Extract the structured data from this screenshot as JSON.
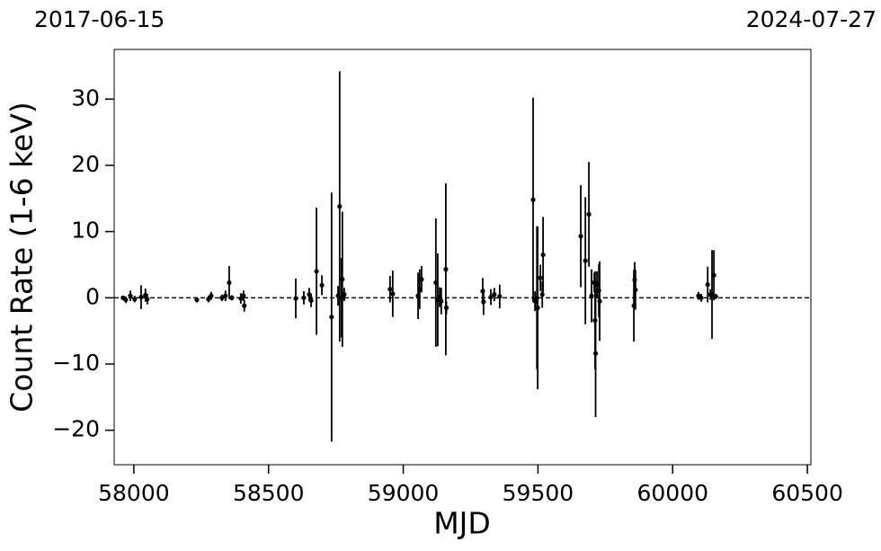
{
  "chart_data": {
    "type": "errorbar",
    "annotations": [
      "2017-06-15",
      "2024-07-27"
    ],
    "xlabel": "MJD",
    "ylabel": "Count Rate (1-6 keV)",
    "color": "#000000",
    "hline": 0,
    "xlim": [
      57927,
      60513
    ],
    "xticks": [
      58000,
      58500,
      59000,
      59500,
      60000,
      60500
    ],
    "ylim": [
      -25.2,
      37.5
    ],
    "yticks": [
      {
        "value": -20,
        "label": "−20"
      },
      {
        "value": -10,
        "label": "−10"
      },
      0,
      10,
      20,
      30
    ],
    "x": [
      57960,
      57970,
      57987,
      58003,
      58027,
      58043,
      58050,
      58234,
      58277,
      58287,
      58327,
      58340,
      58354,
      58364,
      58397,
      58407,
      58410,
      58601,
      58631,
      58651,
      58658,
      58678,
      58698,
      58734,
      58758,
      58764,
      58771,
      58774,
      58781,
      58951,
      58961,
      59055,
      59061,
      59068,
      59121,
      59128,
      59135,
      59141,
      59158,
      59160,
      59295,
      59298,
      59325,
      59338,
      59358,
      59482,
      59489,
      59496,
      59499,
      59509,
      59516,
      59519,
      59659,
      59676,
      59689,
      59699,
      59709,
      59712,
      59714,
      59719,
      59726,
      59729,
      59856,
      59859,
      59862,
      60096,
      60106,
      60130,
      60140,
      60146,
      60153,
      60160
    ],
    "values": [
      0,
      -0.3,
      0.3,
      -0.2,
      0.1,
      0.4,
      -0.2,
      -0.3,
      -0.2,
      0.3,
      0,
      0.3,
      2.3,
      0,
      -0.1,
      0.3,
      -1.2,
      -0.1,
      0,
      0.5,
      -0.4,
      4,
      1.9,
      -2.9,
      0.3,
      13.8,
      0,
      2.8,
      0.5,
      1.3,
      0.6,
      0.3,
      1.3,
      2.8,
      2.3,
      -0.3,
      0.1,
      -0.5,
      4.3,
      -1.5,
      1,
      -0.6,
      0.1,
      0.5,
      0.2,
      14.8,
      -0.5,
      0,
      -1.5,
      3,
      0.5,
      6.5,
      9.3,
      5.6,
      12.6,
      0.3,
      2.3,
      -3.4,
      -8.4,
      2,
      1.1,
      -0.5,
      -1.2,
      2.7,
      1.2,
      0.3,
      0,
      2,
      0.5,
      0.5,
      3.4,
      0.2
    ],
    "errors": [
      0.3,
      0.5,
      0.8,
      0.5,
      1.8,
      1,
      0.8,
      0.4,
      0.5,
      0.6,
      0.5,
      0.8,
      2.5,
      0.4,
      0.8,
      0.8,
      0.9,
      3,
      1,
      1,
      1,
      9.6,
      1.5,
      18.8,
      1.5,
      20.4,
      6,
      10.2,
      1,
      2,
      3.5,
      3.5,
      3,
      2,
      9.7,
      7,
      1.5,
      2,
      13,
      1,
      2,
      2,
      1.2,
      1,
      1.8,
      15.4,
      1.5,
      10.8,
      12.3,
      2,
      2,
      5.7,
      7.7,
      9.6,
      7.9,
      4,
      1.5,
      7.4,
      9.6,
      2,
      4,
      6,
      5.4,
      2.7,
      3,
      0.6,
      0.6,
      2.7,
      0.8,
      6.7,
      3.8,
      0.4
    ]
  }
}
